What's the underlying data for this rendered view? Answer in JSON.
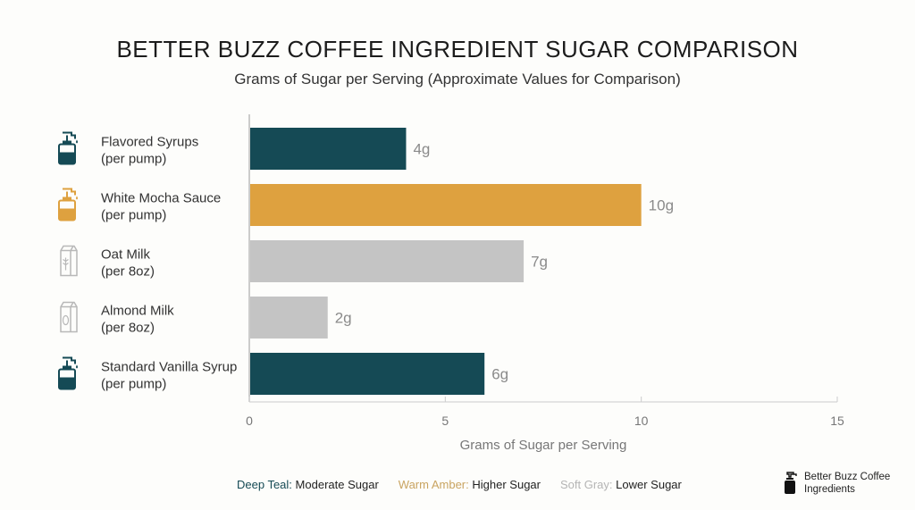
{
  "chart_data": {
    "type": "bar",
    "orientation": "horizontal",
    "title": "BETTER BUZZ COFFEE INGREDIENT SUGAR COMPARISON",
    "subtitle": "Grams of Sugar per Serving (Approximate Values for Comparison)",
    "xlabel": "Grams of Sugar per Serving",
    "xlim": [
      0,
      15
    ],
    "xticks": [
      0,
      5,
      10,
      15
    ],
    "grid": false,
    "categories": [
      {
        "line1": "Flavored Syrups",
        "line2": "(per pump)",
        "icon": "pump-bottle-icon"
      },
      {
        "line1": "White Mocha Sauce",
        "line2": "(per pump)",
        "icon": "pump-bottle-icon"
      },
      {
        "line1": "Oat Milk",
        "line2": "(per 8oz)",
        "icon": "milk-carton-oat-icon"
      },
      {
        "line1": "Almond Milk",
        "line2": "(per 8oz)",
        "icon": "milk-carton-almond-icon"
      },
      {
        "line1": "Standard Vanilla Syrup",
        "line2": "(per pump)",
        "icon": "pump-bottle-icon"
      }
    ],
    "values": [
      4,
      10,
      7,
      2,
      6
    ],
    "data_labels": [
      "4g",
      "10g",
      "7g",
      "2g",
      "6g"
    ],
    "colors": [
      "#154a55",
      "#dea13f",
      "#c4c4c4",
      "#c4c4c4",
      "#154a55"
    ]
  },
  "legend": [
    {
      "key": "Deep Teal:",
      "text": "Moderate Sugar",
      "color": "#154a55"
    },
    {
      "key": "Warm Amber:",
      "text": "Higher Sugar",
      "color": "#c9a461"
    },
    {
      "key": "Soft Gray:",
      "text": "Lower Sugar",
      "color": "#b5b5b5"
    }
  ],
  "brand": {
    "line1": "Better Buzz Coffee",
    "line2": "Ingredients",
    "icon": "pump-bottle-icon"
  }
}
